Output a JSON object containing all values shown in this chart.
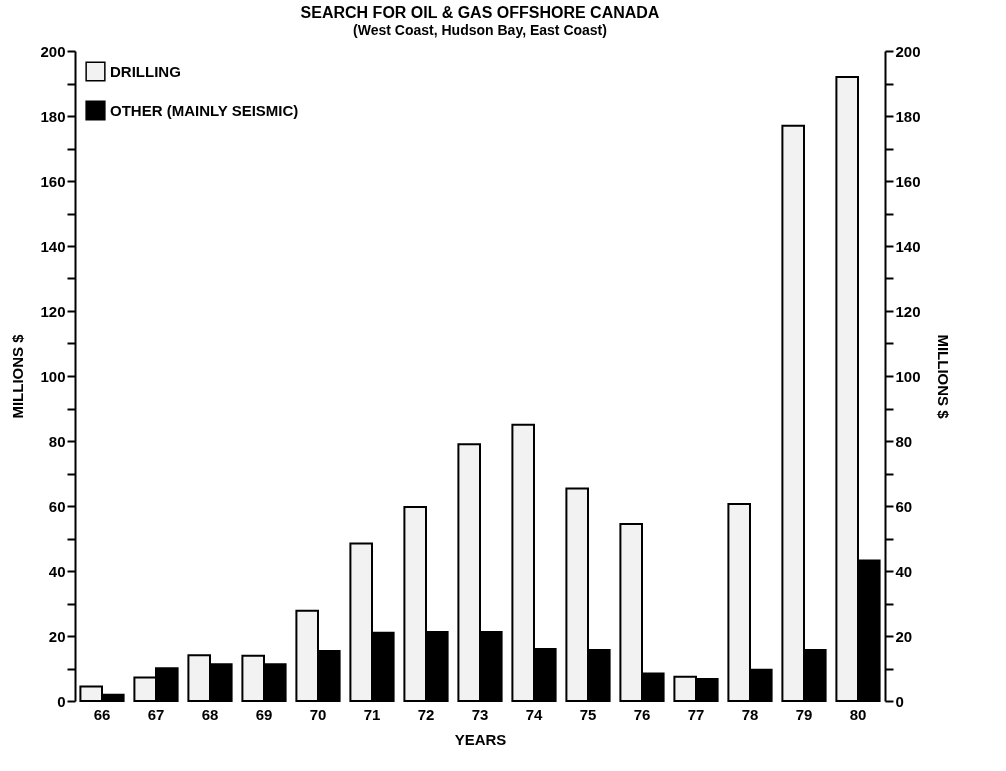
{
  "chart_data": {
    "type": "bar",
    "title": "SEARCH FOR OIL & GAS OFFSHORE CANADA",
    "subtitle": "(West Coast, Hudson Bay, East Coast)",
    "xlabel": "YEARS",
    "ylabel": "MILLIONS $",
    "y2label": "MILLIONS $",
    "categories": [
      "66",
      "67",
      "68",
      "69",
      "70",
      "71",
      "72",
      "73",
      "74",
      "75",
      "76",
      "77",
      "78",
      "79",
      "80"
    ],
    "series": [
      {
        "name": "DRILLING",
        "color": "#f2f2f2",
        "values": [
          4.5,
          7.2,
          14.1,
          13.9,
          27.8,
          48.5,
          59.7,
          79,
          85,
          65.4,
          54.5,
          7.5,
          60.6,
          177,
          192
        ]
      },
      {
        "name": "OTHER (MAINLY SEISMIC)",
        "color": "#000000",
        "values": [
          1.9,
          10.1,
          11.3,
          11.3,
          15.4,
          21,
          21.2,
          21.2,
          16,
          15.7,
          8.5,
          6.8,
          9.6,
          15.7,
          43.2
        ]
      }
    ],
    "ylim": [
      0,
      200
    ],
    "yticks": [
      0,
      {
        "value": 10,
        "label": null
      },
      20,
      {
        "value": 30,
        "label": null
      },
      40,
      {
        "value": 50,
        "label": null
      },
      60,
      {
        "value": 70,
        "label": null
      },
      80,
      {
        "value": 90,
        "label": null
      },
      100,
      {
        "value": 110,
        "label": null
      },
      120,
      {
        "value": 130,
        "label": null
      },
      140,
      {
        "value": 150,
        "label": null
      },
      160,
      {
        "value": 170,
        "label": null
      },
      180,
      {
        "value": 190,
        "label": null
      },
      200
    ],
    "y2lim": [
      0,
      200
    ],
    "y2ticks": [
      0,
      {
        "value": 10,
        "label": null
      },
      20,
      {
        "value": 30,
        "label": null
      },
      40,
      {
        "value": 50,
        "label": null
      },
      60,
      {
        "value": 70,
        "label": null
      },
      80,
      {
        "value": 90,
        "label": null
      },
      100,
      {
        "value": 110,
        "label": null
      },
      120,
      {
        "value": 130,
        "label": null
      },
      140,
      {
        "value": 150,
        "label": null
      },
      160,
      {
        "value": 170,
        "label": null
      },
      180,
      {
        "value": 190,
        "label": null
      },
      200
    ],
    "legend": "top left",
    "grid": false
  }
}
